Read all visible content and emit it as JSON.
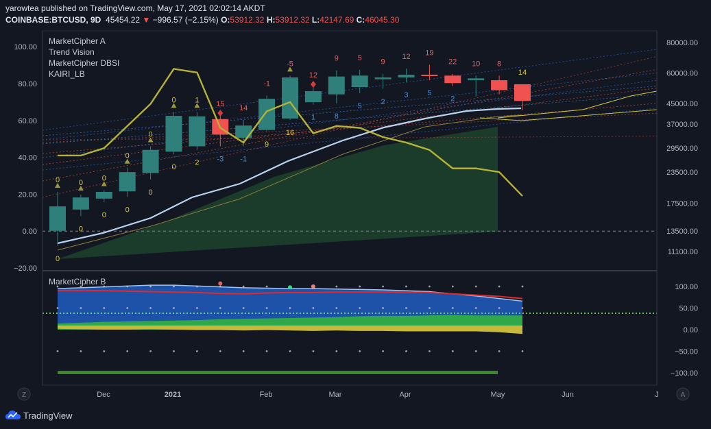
{
  "header": {
    "line1": "yarowtea published on TradingView.com, May 17, 2021 02:02:14 AKDT",
    "symbol": "COINBASE:BTCUSD, 9D",
    "last": "45454.22",
    "change_arrow": "▼",
    "change": "−996.57 (−2.15%)",
    "o_label": "O:",
    "o": "53912.32",
    "h_label": "H:",
    "h": "53912.32",
    "l_label": "L:",
    "l": "42147.69",
    "c_label": "C:",
    "c": "46045.30"
  },
  "legend_top": [
    "MarketCipher A",
    "Trend Vision",
    "MarketCipher DBSI",
    "KAIRI_LB"
  ],
  "legend_bottom": "MarketCipher B",
  "footer": {
    "brand": "TradingView"
  },
  "axis_buttons": {
    "left": "Z",
    "right": "A"
  },
  "colors": {
    "bg": "#131722",
    "up": "#26a69a",
    "down": "#ef5350",
    "kairi": "#b5b235",
    "grid": "#2a2e39"
  },
  "chart_data": [
    {
      "type": "candlestick",
      "panel": "main",
      "x_tick_labels": [
        "Dec",
        "2021",
        "Feb",
        "Mar",
        "Apr",
        "May",
        "Jun",
        "J"
      ],
      "price_axis_labels": [
        "80000.00",
        "60000.00",
        "45000.00",
        "37000.00",
        "29500.00",
        "23500.00",
        "17500.00",
        "13500.00",
        "11100.00"
      ],
      "left_axis_labels": [
        "100.00",
        "80.00",
        "60.00",
        "40.00",
        "20.00",
        "0.00",
        "−20.00"
      ],
      "left_ylim": [
        -20,
        100
      ],
      "price_scale": "log",
      "candles": [
        {
          "o": 13500,
          "h": 19500,
          "l": 11700,
          "c": 17000
        },
        {
          "o": 16500,
          "h": 19000,
          "l": 15500,
          "c": 18500
        },
        {
          "o": 18300,
          "h": 19800,
          "l": 17700,
          "c": 19500
        },
        {
          "o": 19600,
          "h": 24500,
          "l": 18600,
          "c": 23500
        },
        {
          "o": 23300,
          "h": 30000,
          "l": 21900,
          "c": 29000
        },
        {
          "o": 28500,
          "h": 41500,
          "l": 27800,
          "c": 40000
        },
        {
          "o": 30000,
          "h": 41500,
          "l": 29000,
          "c": 39800
        },
        {
          "o": 38800,
          "h": 40000,
          "l": 30000,
          "c": 33500
        },
        {
          "o": 32500,
          "h": 38500,
          "l": 30000,
          "c": 36500
        },
        {
          "o": 35000,
          "h": 48500,
          "l": 34500,
          "c": 47000
        },
        {
          "o": 39000,
          "h": 58500,
          "l": 38500,
          "c": 57500
        },
        {
          "o": 45500,
          "h": 52500,
          "l": 44500,
          "c": 50500
        },
        {
          "o": 49000,
          "h": 61500,
          "l": 45000,
          "c": 58000
        },
        {
          "o": 52500,
          "h": 61800,
          "l": 49500,
          "c": 58500
        },
        {
          "o": 56500,
          "h": 59500,
          "l": 51500,
          "c": 57500
        },
        {
          "o": 57500,
          "h": 62500,
          "l": 55000,
          "c": 59000
        },
        {
          "o": 59000,
          "h": 64800,
          "l": 56000,
          "c": 58500
        },
        {
          "o": 58500,
          "h": 59500,
          "l": 53000,
          "c": 54500
        },
        {
          "o": 56000,
          "h": 58500,
          "l": 48000,
          "c": 57000
        },
        {
          "o": 56000,
          "h": 58500,
          "l": 49000,
          "c": 51000
        },
        {
          "o": 53912.32,
          "h": 53912.32,
          "l": 42147.69,
          "c": 46045.3
        }
      ],
      "kairi": [
        41,
        41,
        45,
        57,
        69,
        88,
        86,
        56,
        48,
        65,
        70,
        53,
        57,
        56,
        51,
        48,
        44,
        34,
        34,
        32,
        19
      ],
      "number_labels_above": [
        "0",
        "0",
        "0",
        "0",
        "0",
        "0",
        "1",
        "15",
        "14",
        "-1",
        "-5",
        "12",
        "9",
        "5",
        "9",
        "12",
        "19",
        "22",
        "10",
        "8",
        "14"
      ],
      "number_labels_below": [
        "0",
        "0",
        "0",
        "0",
        "0",
        "0",
        "2",
        "-3",
        "-1",
        "9",
        "16",
        "1",
        "8",
        "5",
        "2",
        "3",
        "5",
        "2",
        "",
        "",
        ""
      ]
    },
    {
      "type": "area",
      "panel": "oscillator",
      "name": "MarketCipher B",
      "y_axis_labels": [
        "100.00",
        "50.00",
        "0.00",
        "−50.00",
        "−100.00"
      ],
      "ylim": [
        -100,
        100
      ],
      "wave_top": [
        95,
        97,
        99,
        101,
        103,
        103,
        101,
        99,
        97,
        96,
        95,
        95,
        94,
        93,
        92,
        90,
        88,
        83,
        78,
        72,
        66
      ],
      "red_line": [
        90,
        90,
        90,
        89,
        88,
        87,
        86,
        84,
        83,
        85,
        86,
        86,
        87,
        87,
        87,
        87,
        86,
        83,
        80,
        77,
        72
      ],
      "green_money_flow": [
        14,
        16,
        18,
        19,
        20,
        21,
        22,
        24,
        25,
        26,
        27,
        28,
        29,
        31,
        32,
        32,
        33,
        34,
        33,
        33,
        33
      ],
      "yellow_baseline": [
        2,
        1,
        0,
        0,
        1,
        0,
        -1,
        -1,
        -2,
        -1,
        -2,
        -3,
        -2,
        -3,
        -3,
        -4,
        -4,
        -4,
        -4,
        -6,
        -10
      ],
      "green_dotted_level": 38
    }
  ]
}
